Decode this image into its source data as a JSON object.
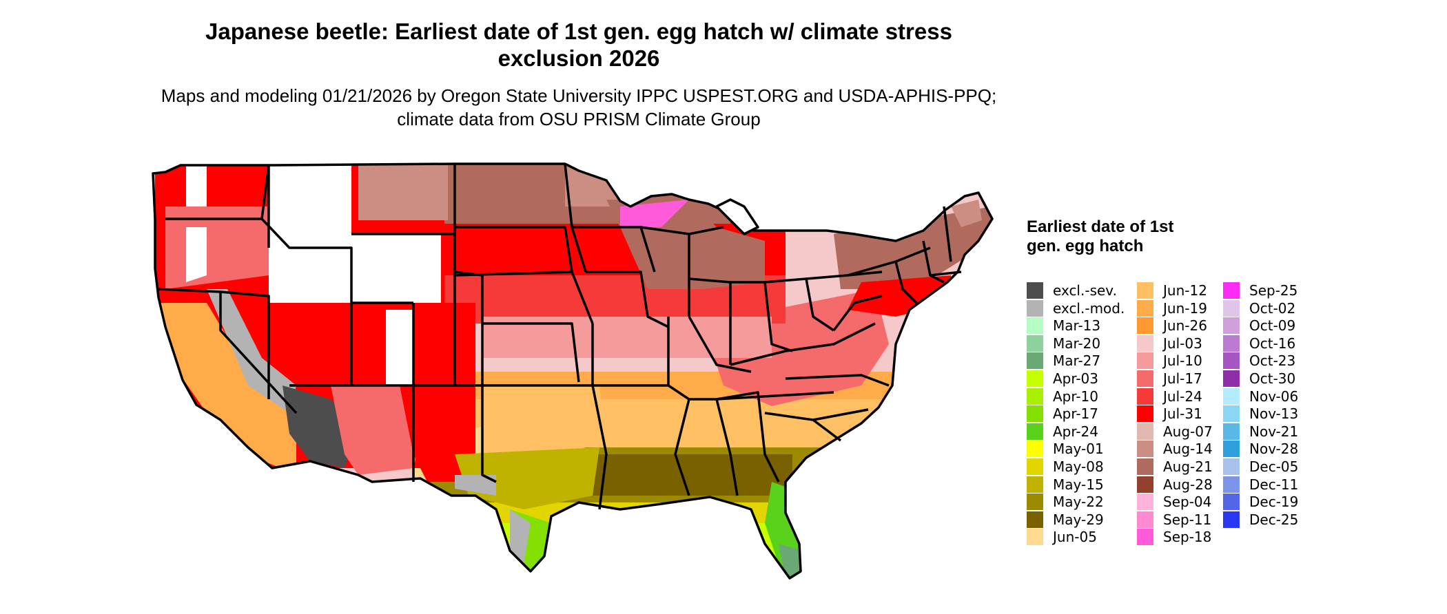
{
  "title": "Japanese beetle: Earliest date of 1st gen. egg hatch w/ climate stress exclusion 2026",
  "subtitle": "Maps and modeling 01/21/2026 by Oregon State University IPPC USPEST.ORG and USDA-APHIS-PPQ; climate data from OSU PRISM Climate Group",
  "legend": {
    "title": "Earliest date of 1st gen. egg hatch",
    "items": [
      {
        "label": "excl.-sev.",
        "color": "#4d4d4d"
      },
      {
        "label": "excl.-mod.",
        "color": "#b3b3b3"
      },
      {
        "label": "Mar-13",
        "color": "#b3ffc3"
      },
      {
        "label": "Mar-20",
        "color": "#8fd19e"
      },
      {
        "label": "Mar-27",
        "color": "#6aa874"
      },
      {
        "label": "Apr-03",
        "color": "#c5ff00"
      },
      {
        "label": "Apr-10",
        "color": "#a8f000"
      },
      {
        "label": "Apr-17",
        "color": "#84e000"
      },
      {
        "label": "Apr-24",
        "color": "#5ad21c"
      },
      {
        "label": "May-01",
        "color": "#ffff00"
      },
      {
        "label": "May-08",
        "color": "#e3d600"
      },
      {
        "label": "May-15",
        "color": "#c0b300"
      },
      {
        "label": "May-22",
        "color": "#9c8a00"
      },
      {
        "label": "May-29",
        "color": "#7a6100"
      },
      {
        "label": "Jun-05",
        "color": "#ffd892"
      },
      {
        "label": "Jun-12",
        "color": "#ffc064"
      },
      {
        "label": "Jun-19",
        "color": "#ffab4a"
      },
      {
        "label": "Jun-26",
        "color": "#ff9a33"
      },
      {
        "label": "Jul-03",
        "color": "#f5c9c9"
      },
      {
        "label": "Jul-10",
        "color": "#f59b9b"
      },
      {
        "label": "Jul-17",
        "color": "#f56a6a"
      },
      {
        "label": "Jul-24",
        "color": "#f53a3a"
      },
      {
        "label": "Jul-31",
        "color": "#ff0000"
      },
      {
        "label": "Aug-07",
        "color": "#e0b8b0"
      },
      {
        "label": "Aug-14",
        "color": "#cc8e82"
      },
      {
        "label": "Aug-21",
        "color": "#b06a5e"
      },
      {
        "label": "Aug-28",
        "color": "#93402e"
      },
      {
        "label": "Sep-04",
        "color": "#ffb3d9"
      },
      {
        "label": "Sep-11",
        "color": "#ff8ad2"
      },
      {
        "label": "Sep-18",
        "color": "#ff5ad9"
      },
      {
        "label": "Sep-25",
        "color": "#ff2af5"
      },
      {
        "label": "Oct-02",
        "color": "#e0c4ea"
      },
      {
        "label": "Oct-09",
        "color": "#cfa0dc"
      },
      {
        "label": "Oct-16",
        "color": "#bb7bd0"
      },
      {
        "label": "Oct-23",
        "color": "#a656c2"
      },
      {
        "label": "Oct-30",
        "color": "#8e2eaa"
      },
      {
        "label": "Nov-06",
        "color": "#b3ecff"
      },
      {
        "label": "Nov-13",
        "color": "#8cd6f5"
      },
      {
        "label": "Nov-21",
        "color": "#5ab8e8"
      },
      {
        "label": "Nov-28",
        "color": "#2ea0dc"
      },
      {
        "label": "Dec-05",
        "color": "#a7c3ec"
      },
      {
        "label": "Dec-11",
        "color": "#7d95e8"
      },
      {
        "label": "Dec-19",
        "color": "#5565e8"
      },
      {
        "label": "Dec-25",
        "color": "#2a38f5"
      }
    ]
  }
}
